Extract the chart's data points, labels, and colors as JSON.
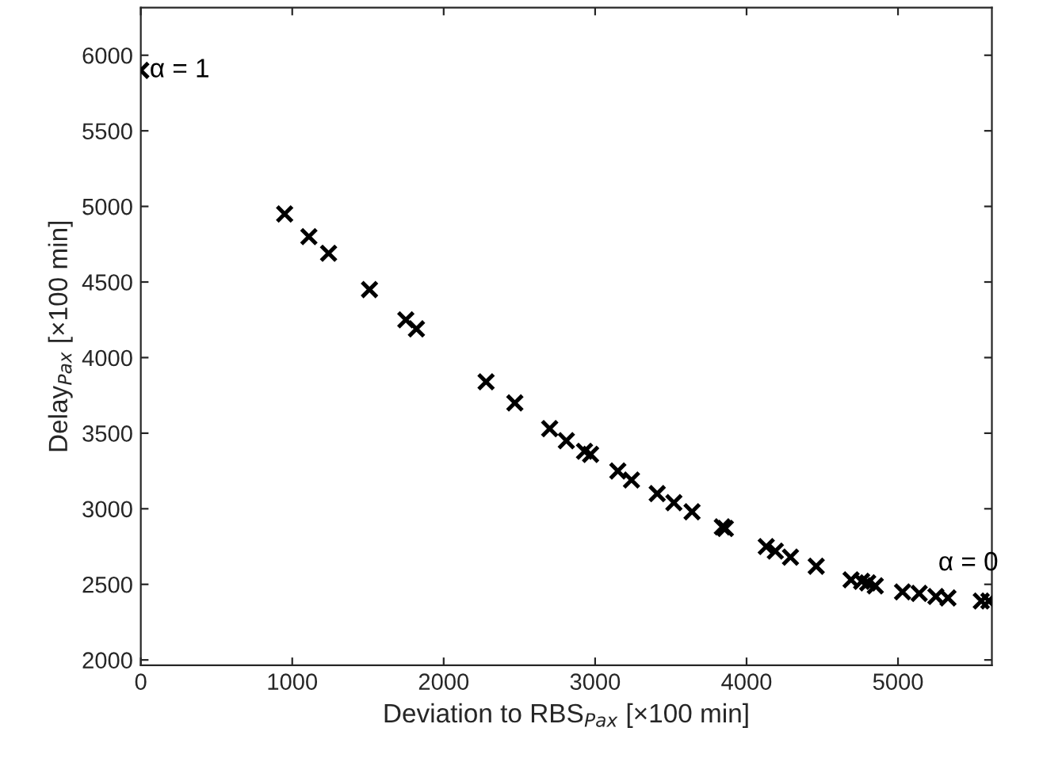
{
  "chart_data": {
    "type": "scatter",
    "xlabel": "Deviation to RBS$_{Pax}$ [×100 min]",
    "ylabel": "Delay$_{Pax}$ [×100 min]",
    "series": [
      {
        "color": "#000000",
        "x": [
          0,
          950,
          1110,
          1240,
          1510,
          1750,
          1820,
          2280,
          2470,
          2700,
          2810,
          2930,
          2970,
          3150,
          3240,
          3410,
          3520,
          3640,
          3840,
          3860,
          4130,
          4190,
          4290,
          4460,
          4690,
          4760,
          4800,
          4850,
          5030,
          5140,
          5250,
          5330,
          5550,
          5600
        ],
        "values": [
          5900,
          4950,
          4800,
          4690,
          4450,
          4250,
          4190,
          3840,
          3700,
          3530,
          3450,
          3380,
          3360,
          3250,
          3190,
          3100,
          3040,
          2980,
          2880,
          2870,
          2750,
          2720,
          2680,
          2620,
          2530,
          2520,
          2510,
          2490,
          2450,
          2440,
          2420,
          2410,
          2390,
          2390
        ]
      }
    ],
    "marker": "cross",
    "xlim": [
      0,
      5620
    ],
    "ylim": [
      1965,
      6315
    ],
    "xticks": [
      0,
      1000,
      2000,
      3000,
      4000,
      5000
    ],
    "yticks": [
      2000,
      2500,
      3000,
      3500,
      4000,
      4500,
      5000,
      5500,
      6000
    ],
    "grid": false,
    "legend": false,
    "annotations": [
      {
        "text": "α = 1",
        "x": 0,
        "y": 5900
      },
      {
        "text": "α = 0",
        "x": 5600,
        "y": 2390
      }
    ]
  }
}
